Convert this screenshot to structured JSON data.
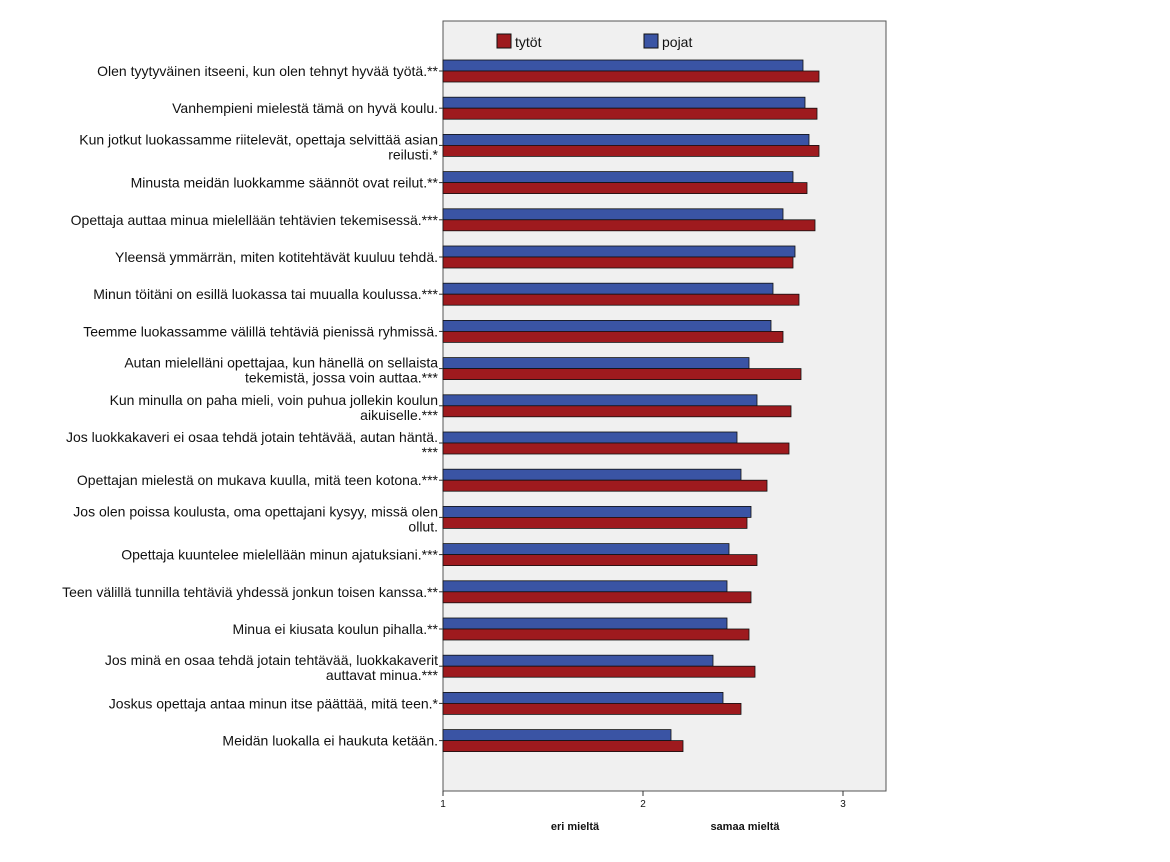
{
  "chart_data": {
    "type": "bar",
    "orientation": "horizontal",
    "categories": [
      [
        "Olen tyytyväinen itseeni, kun olen tehnyt hyvää työtä.**"
      ],
      [
        "Vanhempieni mielestä tämä on hyvä koulu."
      ],
      [
        "Kun jotkut luokassamme riitelevät, opettaja selvittää asian",
        "reilusti.*"
      ],
      [
        "Minusta meidän luokkamme säännöt ovat reilut.**"
      ],
      [
        "Opettaja auttaa minua mielellään tehtävien tekemisessä.***"
      ],
      [
        "Yleensä ymmärrän, miten kotitehtävät kuuluu tehdä."
      ],
      [
        "Minun töitäni on esillä luokassa tai muualla koulussa.***"
      ],
      [
        "Teemme luokassamme välillä tehtäviä pienissä ryhmissä."
      ],
      [
        "Autan mielelläni opettajaa, kun hänellä on sellaista",
        "tekemistä, jossa voin auttaa.***"
      ],
      [
        "Kun minulla on paha mieli, voin puhua jollekin koulun",
        "aikuiselle.***"
      ],
      [
        "Jos luokkakaveri ei osaa tehdä jotain tehtävää, autan häntä.",
        "***"
      ],
      [
        "Opettajan mielestä on mukava kuulla, mitä teen kotona.***"
      ],
      [
        "Jos olen poissa koulusta, oma opettajani kysyy, missä olen",
        "ollut."
      ],
      [
        "Opettaja kuuntelee mielellään minun ajatuksiani.***"
      ],
      [
        "Teen välillä tunnilla tehtäviä yhdessä jonkun toisen kanssa.**"
      ],
      [
        "Minua ei kiusata koulun pihalla.**"
      ],
      [
        "Jos minä en osaa tehdä jotain tehtävää, luokkakaverit",
        "auttavat minua.***"
      ],
      [
        "Joskus opettaja antaa minun itse päättää, mitä teen.*"
      ],
      [
        "Meidän luokalla ei haukuta ketään."
      ]
    ],
    "series": [
      {
        "name": "pojat",
        "color": "#3a54a4",
        "values": [
          2.8,
          2.81,
          2.83,
          2.75,
          2.7,
          2.76,
          2.65,
          2.64,
          2.53,
          2.57,
          2.47,
          2.49,
          2.54,
          2.43,
          2.42,
          2.42,
          2.35,
          2.4,
          2.14
        ]
      },
      {
        "name": "tytöt",
        "color": "#9e1a1e",
        "values": [
          2.88,
          2.87,
          2.88,
          2.82,
          2.86,
          2.75,
          2.78,
          2.7,
          2.79,
          2.74,
          2.73,
          2.62,
          2.52,
          2.57,
          2.54,
          2.53,
          2.56,
          2.49,
          2.2
        ]
      }
    ],
    "legend": {
      "items": [
        "tytöt",
        "pojat"
      ],
      "position": "top"
    },
    "xlim": [
      1,
      3.22
    ],
    "xticks": [
      "1",
      "2",
      "3"
    ],
    "xtick_values": [
      1,
      2,
      3
    ],
    "xaxis_notes": [
      "eri mieltä",
      "samaa mieltä"
    ],
    "xaxis_note_values": [
      1.66,
      2.51
    ],
    "plot_background": "#f0f0f0",
    "grid": false
  }
}
